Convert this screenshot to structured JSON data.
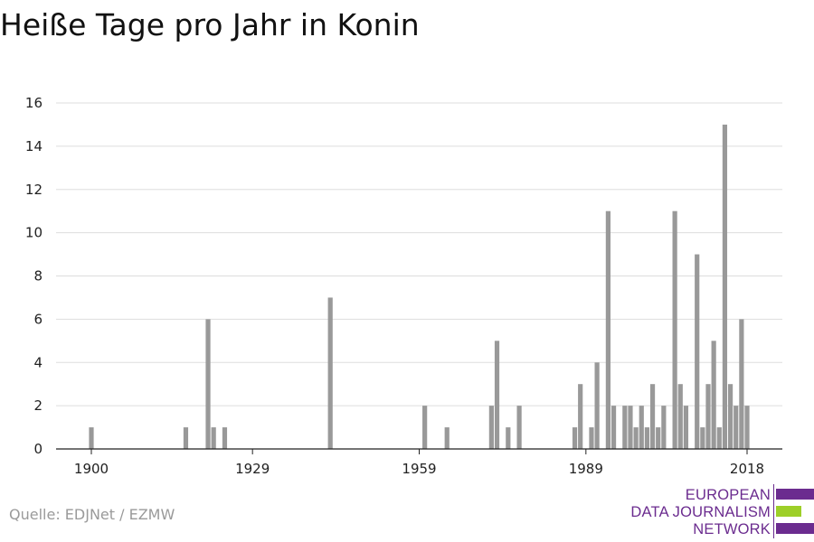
{
  "title": "Heiße Tage pro Jahr in Konin",
  "source": "Quelle: EDJNet / EZMW",
  "logo": {
    "line1": "EUROPEAN",
    "line2": "DATA JOURNALISM",
    "line3": "NETWORK"
  },
  "colors": {
    "bar": "#999999",
    "grid": "#dddddd",
    "axis": "#222222",
    "logo_purple": "#6b2c8f",
    "logo_green": "#9dcf28"
  },
  "chart_data": {
    "type": "bar",
    "title": "Heiße Tage pro Jahr in Konin",
    "xlabel": "",
    "ylabel": "",
    "xlim": [
      1900,
      2018
    ],
    "ylim": [
      0,
      16
    ],
    "x_ticks": [
      1900,
      1929,
      1959,
      1989,
      2018
    ],
    "y_ticks": [
      0,
      2,
      4,
      6,
      8,
      10,
      12,
      14,
      16
    ],
    "grid": true,
    "legend": "none",
    "series": [
      {
        "x": [
          1900,
          1917,
          1921,
          1922,
          1924,
          1943,
          1960,
          1964,
          1972,
          1973,
          1975,
          1977,
          1987,
          1988,
          1990,
          1991,
          1993,
          1994,
          1996,
          1997,
          1998,
          1999,
          2000,
          2001,
          2002,
          2003,
          2005,
          2006,
          2007,
          2009,
          2010,
          2011,
          2012,
          2013,
          2014,
          2015,
          2016,
          2017,
          2018
        ],
        "values": [
          1,
          1,
          6,
          1,
          1,
          7,
          2,
          1,
          2,
          5,
          1,
          2,
          1,
          3,
          1,
          4,
          11,
          2,
          2,
          2,
          1,
          2,
          1,
          3,
          1,
          2,
          11,
          3,
          2,
          9,
          1,
          3,
          5,
          1,
          15,
          3,
          2,
          6,
          2
        ]
      }
    ]
  }
}
